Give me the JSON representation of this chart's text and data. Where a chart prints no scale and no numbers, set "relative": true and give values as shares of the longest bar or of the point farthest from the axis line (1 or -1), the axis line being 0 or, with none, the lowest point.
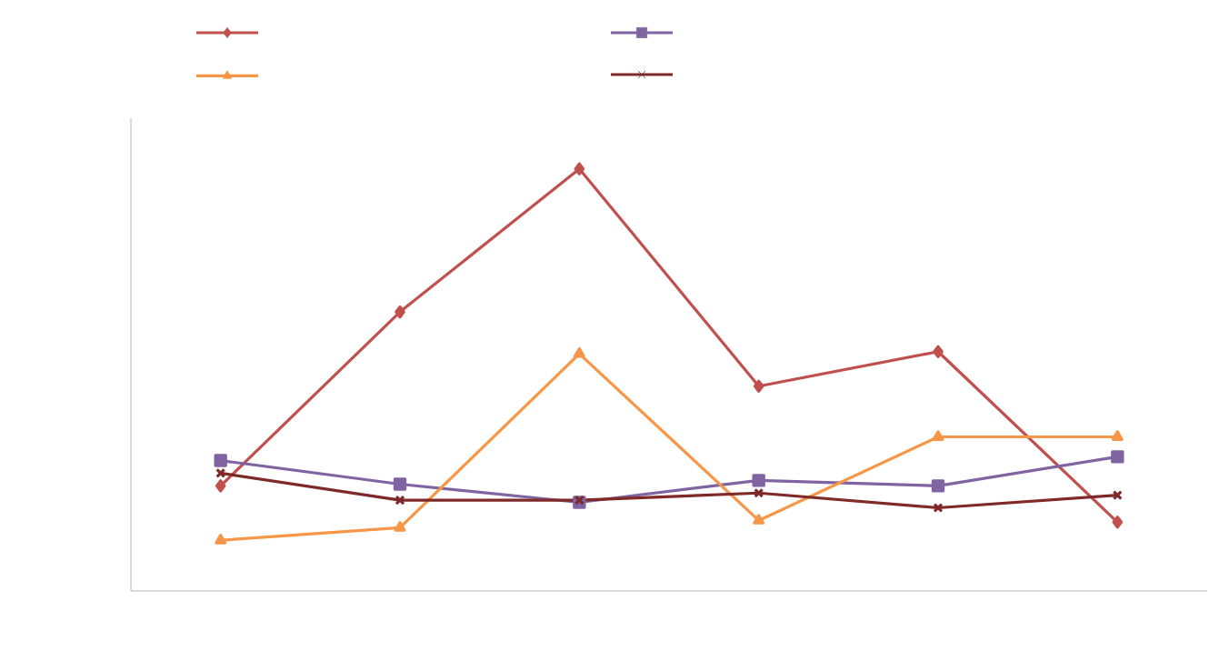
{
  "chart_data": {
    "type": "line",
    "relative": true,
    "categories": [
      null,
      null,
      null,
      null,
      null,
      null
    ],
    "series": [
      {
        "color": "#c0504d",
        "marker": "diamond",
        "values": [
          0.249,
          0.661,
          1,
          0.485,
          0.567,
          0.163
        ]
      },
      {
        "color": "#8064a2",
        "marker": "square",
        "values": [
          0.309,
          0.253,
          0.21,
          0.262,
          0.249,
          0.318
        ]
      },
      {
        "color": "#f79646",
        "marker": "triangle",
        "values": [
          0.12,
          0.15,
          0.562,
          0.167,
          0.365,
          0.365
        ]
      },
      {
        "color": "#7f2a28",
        "marker": "cross",
        "values": [
          0.279,
          0.215,
          0.215,
          0.232,
          0.197,
          0.227
        ]
      }
    ],
    "line_style": "solid"
  }
}
